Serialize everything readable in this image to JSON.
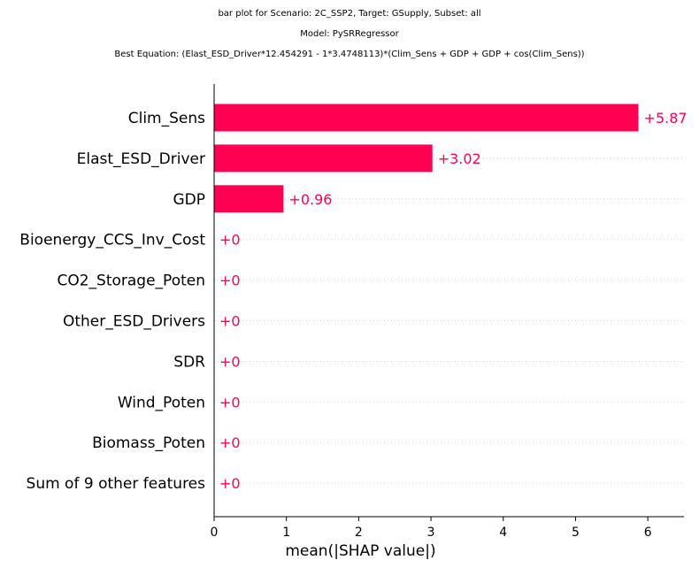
{
  "chart_data": {
    "type": "bar",
    "orientation": "horizontal",
    "title_lines": [
      "bar plot for Scenario: 2C_SSP2, Target: GSupply, Subset: all",
      "Model: PySRRegressor",
      "Best Equation: (Elast_ESD_Driver*12.454291 - 1*3.4748113)*(Clim_Sens + GDP + GDP + cos(Clim_Sens))"
    ],
    "categories": [
      "Clim_Sens",
      "Elast_ESD_Driver",
      "GDP",
      "Bioenergy_CCS_Inv_Cost",
      "CO2_Storage_Poten",
      "Other_ESD_Drivers",
      "SDR",
      "Wind_Poten",
      "Biomass_Poten",
      "Sum of 9 other features"
    ],
    "values": [
      5.87,
      3.02,
      0.96,
      0,
      0,
      0,
      0,
      0,
      0,
      0
    ],
    "value_labels": [
      "+5.87",
      "+3.02",
      "+0.96",
      "+0",
      "+0",
      "+0",
      "+0",
      "+0",
      "+0",
      "+0"
    ],
    "xlabel": "mean(|SHAP value|)",
    "ylabel": "",
    "xlim": [
      0,
      6.5
    ],
    "xticks": [
      "0",
      "1",
      "2",
      "3",
      "4",
      "5",
      "6"
    ],
    "grid": "dotted horizontal row guides",
    "legend": "none",
    "bar_color": "#ff0052",
    "guide_color": "#cccccc"
  }
}
